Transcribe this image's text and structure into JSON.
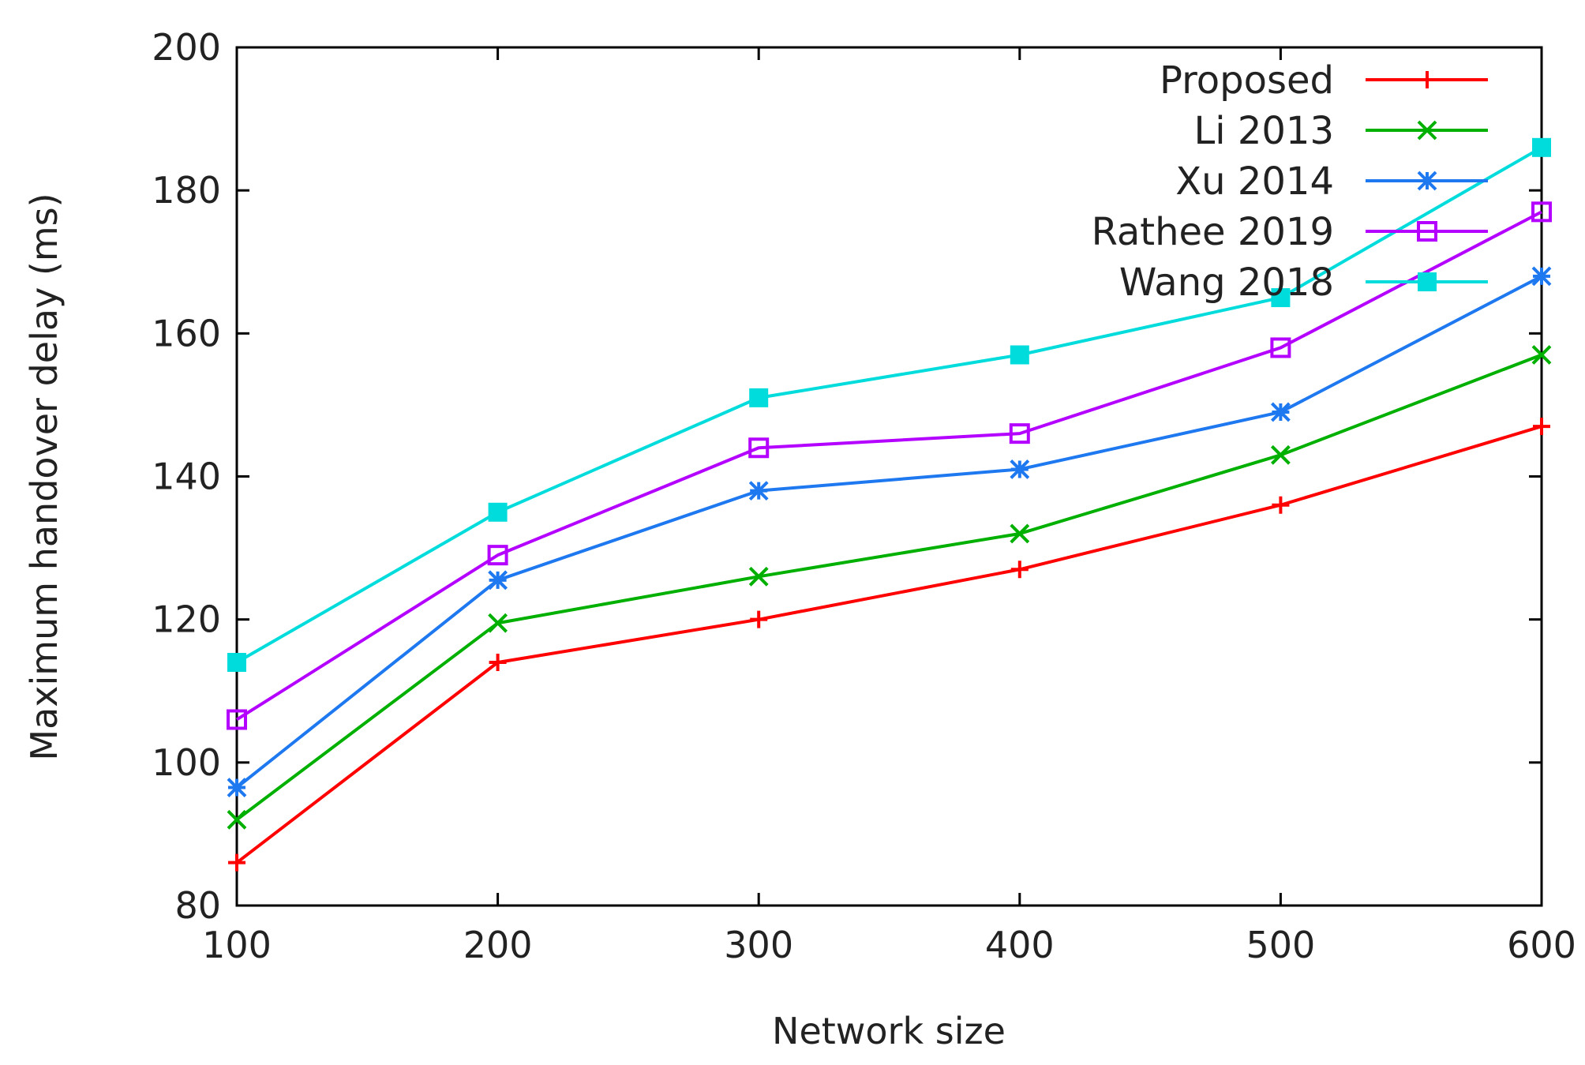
{
  "chart_data": {
    "type": "line",
    "title": "",
    "xlabel": "Network size",
    "ylabel": "Maximum handover delay (ms)",
    "x": [
      100,
      200,
      300,
      400,
      500,
      600
    ],
    "xlim": [
      100,
      600
    ],
    "ylim": [
      80,
      200
    ],
    "xticks": [
      100,
      200,
      300,
      400,
      500,
      600
    ],
    "yticks": [
      80,
      100,
      120,
      140,
      160,
      180,
      200
    ],
    "legend_position": "top-right",
    "series": [
      {
        "name": "Proposed",
        "color": "#ff0000",
        "marker": "plus",
        "values": [
          86,
          114,
          120,
          127,
          136,
          147
        ]
      },
      {
        "name": "Li 2013",
        "color": "#00b000",
        "marker": "cross",
        "values": [
          92,
          119.5,
          126,
          132,
          143,
          157
        ]
      },
      {
        "name": "Xu 2014",
        "color": "#1e78f0",
        "marker": "star",
        "values": [
          96.5,
          125.5,
          138,
          141,
          149,
          168
        ]
      },
      {
        "name": "Rathee 2019",
        "color": "#b400ff",
        "marker": "square-open",
        "values": [
          106,
          129,
          144,
          146,
          158,
          177
        ]
      },
      {
        "name": "Wang 2018",
        "color": "#00dcdc",
        "marker": "square-filled",
        "values": [
          114,
          135,
          151,
          157,
          165,
          186
        ]
      }
    ]
  }
}
